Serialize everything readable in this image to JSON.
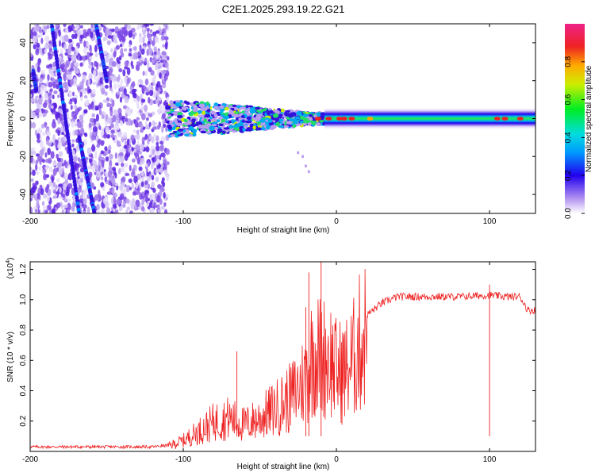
{
  "chart_data": [
    {
      "type": "heatmap",
      "title": "C2E1.2025.293.19.22.G21",
      "xlabel": "Height of straight line (km)",
      "ylabel": "Frequency (Hz)",
      "xlim": [
        -200,
        130
      ],
      "ylim": [
        -50,
        50
      ],
      "x_ticks": [
        "-200",
        "-100",
        "0",
        "100"
      ],
      "y_ticks": [
        "-40",
        "-20",
        "0",
        "20",
        "40"
      ],
      "colorbar": {
        "label": "Normalized spectral amplitude",
        "range": [
          0,
          1
        ],
        "ticks": [
          "0.0",
          "0.2",
          "0.4",
          "0.6",
          "0.8"
        ]
      },
      "features": {
        "scatter_region_x": [
          -200,
          -110
        ],
        "turbulent_region_x": [
          -110,
          0
        ],
        "steady_region_x": [
          0,
          130
        ],
        "dominant_frequency": 0
      }
    },
    {
      "type": "line",
      "xlabel": "Height of straight line (km)",
      "ylabel": "SNR (10 * v/v)",
      "y_multiplier": "(x10",
      "y_exponent": "4",
      "y_exponent_close": ")",
      "xlim": [
        -200,
        130
      ],
      "ylim": [
        0,
        1.25
      ],
      "x_ticks": [
        "-200",
        "-100",
        "0",
        "100"
      ],
      "y_ticks": [
        "0.2",
        "0.4",
        "0.6",
        "0.8",
        "1.0",
        "1.2"
      ],
      "series": [
        {
          "name": "SNR",
          "color": "#ee2222",
          "x": [
            -200,
            -180,
            -160,
            -140,
            -120,
            -110,
            -100,
            -90,
            -80,
            -70,
            -60,
            -50,
            -40,
            -30,
            -20,
            -15,
            -10,
            -5,
            0,
            5,
            10,
            15,
            20,
            30,
            40,
            60,
            80,
            100,
            110,
            120,
            125,
            130
          ],
          "y": [
            0.03,
            0.03,
            0.03,
            0.03,
            0.03,
            0.04,
            0.08,
            0.15,
            0.22,
            0.25,
            0.2,
            0.25,
            0.32,
            0.4,
            0.55,
            0.75,
            0.7,
            0.72,
            0.6,
            0.6,
            0.66,
            0.8,
            0.9,
            0.98,
            1.02,
            1.02,
            1.02,
            1.03,
            1.02,
            1.02,
            0.93,
            0.93
          ]
        }
      ],
      "spikes": [
        {
          "x": -65,
          "y": 0.66
        },
        {
          "x": -20,
          "y": 0.95
        },
        {
          "x": -18,
          "y": 1.18
        },
        {
          "x": -10,
          "y": 1.25
        },
        {
          "x": 100,
          "y": 1.1
        }
      ]
    }
  ]
}
